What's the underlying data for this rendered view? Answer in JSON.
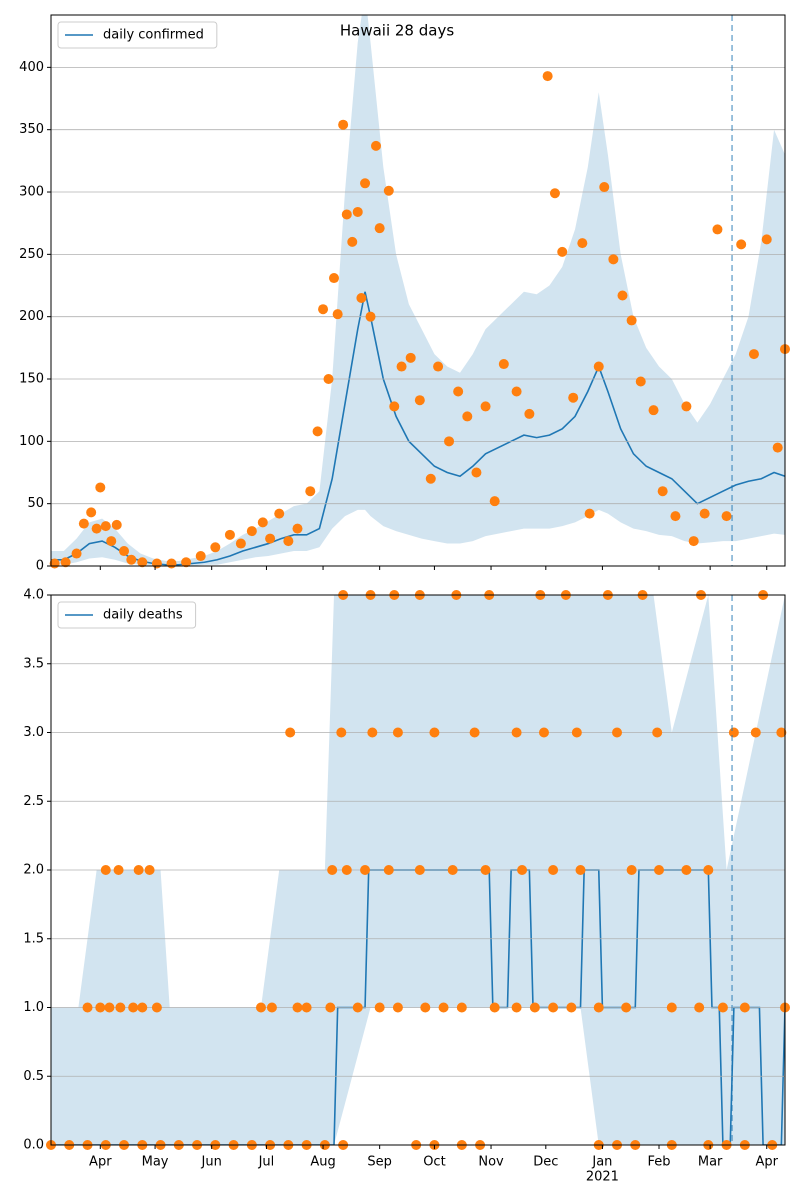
{
  "chart_data": [
    {
      "type": "line",
      "title": "Hawaii 28 days",
      "x": [
        0,
        7,
        14,
        21,
        28,
        35,
        42,
        49,
        56,
        63,
        70,
        77,
        84,
        91,
        98,
        105,
        112,
        119,
        126,
        133,
        140,
        147,
        154,
        161,
        168,
        172,
        175,
        182,
        189,
        196,
        203,
        210,
        217,
        224,
        231,
        238,
        245,
        252,
        259,
        266,
        273,
        280,
        287,
        294,
        300,
        305,
        312,
        319,
        326,
        333,
        340,
        347,
        354,
        361,
        368,
        375,
        382,
        389,
        396,
        402
      ],
      "series": [
        {
          "name": "daily confirmed",
          "color": "#1f77b4",
          "values": [
            5,
            5,
            10,
            18,
            20,
            15,
            8,
            4,
            2,
            1,
            1,
            2,
            3,
            5,
            8,
            12,
            15,
            18,
            22,
            25,
            25,
            30,
            70,
            130,
            190,
            220,
            200,
            150,
            120,
            100,
            90,
            80,
            75,
            72,
            80,
            90,
            95,
            100,
            105,
            103,
            105,
            110,
            120,
            140,
            160,
            140,
            110,
            90,
            80,
            75,
            70,
            60,
            50,
            55,
            60,
            65,
            68,
            70,
            75,
            72
          ]
        }
      ],
      "band": {
        "color": "#1f77b4",
        "lower": [
          1,
          1,
          3,
          6,
          7,
          5,
          2,
          1,
          0,
          0,
          0,
          0,
          1,
          1,
          3,
          5,
          7,
          8,
          10,
          12,
          12,
          15,
          30,
          40,
          45,
          45,
          40,
          32,
          28,
          25,
          22,
          20,
          18,
          18,
          20,
          24,
          26,
          28,
          30,
          30,
          30,
          32,
          35,
          40,
          45,
          42,
          35,
          30,
          28,
          25,
          24,
          20,
          18,
          19,
          20,
          20,
          22,
          24,
          26,
          25
        ],
        "upper": [
          12,
          12,
          22,
          35,
          38,
          30,
          18,
          10,
          6,
          4,
          4,
          6,
          8,
          12,
          18,
          25,
          30,
          36,
          42,
          48,
          50,
          60,
          150,
          300,
          420,
          460,
          420,
          320,
          250,
          210,
          190,
          170,
          160,
          155,
          170,
          190,
          200,
          210,
          220,
          218,
          225,
          240,
          270,
          320,
          380,
          330,
          250,
          200,
          175,
          160,
          150,
          130,
          115,
          130,
          150,
          170,
          200,
          260,
          350,
          330
        ]
      },
      "points": {
        "color": "#ff7f0e",
        "x": [
          2,
          8,
          14,
          18,
          22,
          25,
          27,
          30,
          33,
          36,
          40,
          44,
          50,
          58,
          66,
          74,
          82,
          90,
          98,
          104,
          110,
          116,
          120,
          125,
          130,
          135,
          142,
          146,
          149,
          152,
          155,
          157,
          160,
          162,
          165,
          168,
          170,
          172,
          175,
          178,
          180,
          185,
          188,
          192,
          197,
          202,
          208,
          212,
          218,
          223,
          228,
          233,
          238,
          243,
          248,
          255,
          262,
          272,
          276,
          280,
          286,
          291,
          295,
          300,
          303,
          308,
          313,
          318,
          323,
          330,
          335,
          342,
          348,
          352,
          358,
          365,
          370,
          378,
          385,
          392,
          398,
          402
        ],
        "values": [
          2,
          3,
          10,
          34,
          43,
          30,
          63,
          32,
          20,
          33,
          12,
          5,
          3,
          2,
          2,
          3,
          8,
          15,
          25,
          18,
          28,
          35,
          22,
          42,
          20,
          30,
          60,
          108,
          206,
          150,
          231,
          202,
          354,
          282,
          260,
          284,
          215,
          307,
          200,
          337,
          271,
          301,
          128,
          160,
          167,
          133,
          70,
          160,
          100,
          140,
          120,
          75,
          128,
          52,
          162,
          140,
          122,
          393,
          299,
          252,
          135,
          259,
          42,
          160,
          304,
          246,
          217,
          197,
          148,
          125,
          60,
          40,
          128,
          20,
          42,
          270,
          40,
          258,
          170,
          262,
          95,
          174
        ]
      },
      "xlim": [
        0,
        402
      ],
      "ylim": [
        0,
        442
      ],
      "yticks": [
        0,
        50,
        100,
        150,
        200,
        250,
        300,
        350,
        400
      ],
      "vline": 373,
      "grid": true,
      "legend": "upper left"
    },
    {
      "type": "line",
      "x": [
        0,
        155,
        157,
        172,
        174,
        240,
        242,
        250,
        252,
        262,
        264,
        290,
        292,
        300,
        302,
        320,
        322,
        360,
        362,
        366,
        368,
        372,
        374,
        388,
        390,
        400,
        402
      ],
      "series": [
        {
          "name": "daily deaths",
          "color": "#1f77b4",
          "values": [
            0,
            0,
            1,
            1,
            2,
            2,
            1,
            1,
            2,
            2,
            1,
            1,
            2,
            2,
            1,
            1,
            2,
            2,
            1,
            1,
            0,
            0,
            1,
            1,
            0,
            0,
            1
          ]
        }
      ],
      "band": {
        "color": "#1f77b4",
        "x": [
          0,
          15,
          25,
          60,
          65,
          115,
          125,
          150,
          155,
          175,
          290,
          300,
          330,
          340,
          360,
          370,
          402
        ],
        "lower": [
          0,
          0,
          0,
          0,
          0,
          0,
          0,
          0,
          0,
          1,
          1,
          0,
          0,
          0,
          0,
          0,
          0
        ],
        "upper": [
          1,
          1,
          2,
          2,
          1,
          1,
          2,
          2,
          4,
          4,
          4,
          4,
          4,
          3,
          4,
          2,
          4
        ]
      },
      "points": {
        "color": "#ff7f0e",
        "x": [
          0,
          10,
          20,
          30,
          40,
          50,
          60,
          70,
          80,
          90,
          100,
          110,
          120,
          130,
          140,
          150,
          160,
          200,
          210,
          225,
          235,
          300,
          310,
          320,
          340,
          360,
          370,
          380,
          395,
          20,
          27,
          32,
          38,
          45,
          50,
          58,
          115,
          121,
          135,
          140,
          153,
          168,
          180,
          190,
          205,
          215,
          225,
          243,
          255,
          265,
          275,
          285,
          300,
          315,
          340,
          355,
          368,
          380,
          402,
          30,
          37,
          48,
          54,
          154,
          162,
          172,
          185,
          202,
          220,
          238,
          258,
          275,
          290,
          318,
          333,
          348,
          360,
          131,
          159,
          176,
          190,
          210,
          232,
          255,
          270,
          288,
          310,
          332,
          374,
          386,
          400,
          160,
          175,
          188,
          202,
          222,
          240,
          268,
          282,
          305,
          324,
          356,
          390
        ],
        "values": [
          0,
          0,
          0,
          0,
          0,
          0,
          0,
          0,
          0,
          0,
          0,
          0,
          0,
          0,
          0,
          0,
          0,
          0,
          0,
          0,
          0,
          0,
          0,
          0,
          0,
          0,
          0,
          0,
          0,
          1,
          1,
          1,
          1,
          1,
          1,
          1,
          1,
          1,
          1,
          1,
          1,
          1,
          1,
          1,
          1,
          1,
          1,
          1,
          1,
          1,
          1,
          1,
          1,
          1,
          1,
          1,
          1,
          1,
          1,
          2,
          2,
          2,
          2,
          2,
          2,
          2,
          2,
          2,
          2,
          2,
          2,
          2,
          2,
          2,
          2,
          2,
          2,
          3,
          3,
          3,
          3,
          3,
          3,
          3,
          3,
          3,
          3,
          3,
          3,
          3,
          3,
          4,
          4,
          4,
          4,
          4,
          4,
          4,
          4,
          4,
          4,
          4,
          4
        ]
      },
      "xlim": [
        0,
        402
      ],
      "ylim": [
        0,
        4
      ],
      "yticks": [
        {
          "value": 0,
          "label": "0.0"
        },
        {
          "value": 0.5,
          "label": "0.5"
        },
        {
          "value": 1,
          "label": "1.0"
        },
        {
          "value": 1.5,
          "label": "1.5"
        },
        {
          "value": 2,
          "label": "2.0"
        },
        {
          "value": 2.5,
          "label": "2.5"
        },
        {
          "value": 3,
          "label": "3.0"
        },
        {
          "value": 3.5,
          "label": "3.5"
        },
        {
          "value": 4,
          "label": "4.0"
        }
      ],
      "xticks": [
        {
          "value": 27,
          "label": "Apr"
        },
        {
          "value": 57,
          "label": "May"
        },
        {
          "value": 88,
          "label": "Jun"
        },
        {
          "value": 118,
          "label": "Jul"
        },
        {
          "value": 149,
          "label": "Aug"
        },
        {
          "value": 180,
          "label": "Sep"
        },
        {
          "value": 210,
          "label": "Oct"
        },
        {
          "value": 241,
          "label": "Nov"
        },
        {
          "value": 271,
          "label": "Dec"
        },
        {
          "value": 302,
          "label": "Jan"
        },
        {
          "value": 333,
          "label": "Feb"
        },
        {
          "value": 361,
          "label": "Mar"
        },
        {
          "value": 392,
          "label": "Apr"
        }
      ],
      "x_year_label": {
        "value": 302,
        "label": "2021"
      },
      "vline": 373,
      "grid": true,
      "legend": "upper left"
    }
  ]
}
